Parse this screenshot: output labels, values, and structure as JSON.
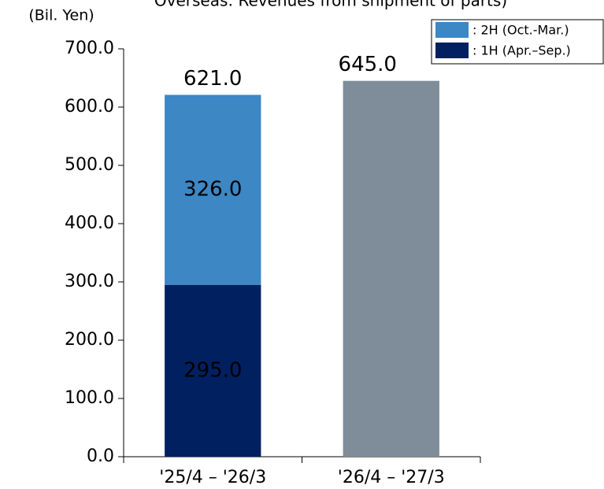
{
  "chart_data": {
    "type": "stacked_bar",
    "title": "Overseas: Revenues from shipment of parts)",
    "y_label": "(Bil. Yen)",
    "categories": [
      "'25/4 – '26/3",
      "'26/4 – '27/3"
    ],
    "series": [
      {
        "name": ": 1H (Apr.–Sep.)",
        "color": "#002060",
        "values": [
          295,
          null
        ],
        "value_labels": [
          "295.0",
          null
        ],
        "label_color": "#ffffff"
      },
      {
        "name": ": 2H (Oct.-Mar.)",
        "color": "#3c87c4",
        "values": [
          326,
          null
        ],
        "value_labels": [
          "326.0",
          null
        ],
        "label_color": "#ffffff"
      },
      {
        "color": "#7f8c99",
        "values": [
          null,
          645
        ],
        "value_labels": [
          null,
          "645.0"
        ],
        "label_color": "#000000"
      }
    ],
    "totals": [
      621,
      null
    ],
    "total_labels": [
      "621.0",
      null
    ],
    "ylim": [
      0,
      700
    ],
    "yticks": [
      {
        "value": 0,
        "label": "0.0"
      },
      {
        "value": 100,
        "label": "100.0"
      },
      {
        "value": 200,
        "label": "200.0"
      },
      {
        "value": 300,
        "label": "300.0"
      },
      {
        "value": 400,
        "label": "400.0"
      },
      {
        "value": 500,
        "label": "500.0"
      },
      {
        "value": 600,
        "label": "600.0"
      },
      {
        "value": 700,
        "label": "700.0"
      }
    ],
    "legend": "top-right",
    "grid": false
  }
}
